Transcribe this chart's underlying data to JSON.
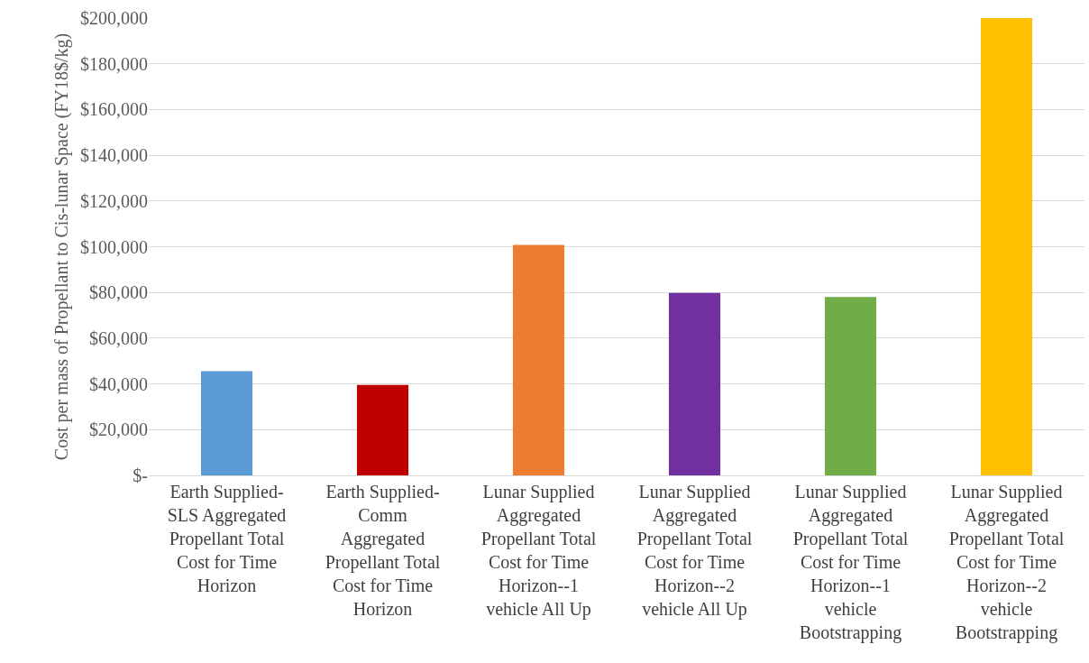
{
  "chart_data": {
    "type": "bar",
    "ylabel": "Cost per mass of Propellant to Cis-lunar Space (FY18$/kg)",
    "categories": [
      "Earth Supplied-\nSLS Aggregated\nPropellant Total\nCost for Time\nHorizon",
      "Earth Supplied-\nComm\nAggregated\nPropellant Total\nCost for Time\nHorizon",
      "Lunar Supplied\nAggregated\nPropellant Total\nCost for Time\nHorizon--1\nvehicle All Up",
      "Lunar Supplied\nAggregated\nPropellant Total\nCost for Time\nHorizon--2\nvehicle All Up",
      "Lunar Supplied\nAggregated\nPropellant Total\nCost for Time\nHorizon--1\nvehicle\nBootstrapping",
      "Lunar Supplied\nAggregated\nPropellant Total\nCost for Time\nHorizon--2\nvehicle\nBootstrapping"
    ],
    "values": [
      45600,
      39500,
      100800,
      79800,
      78000,
      200000
    ],
    "colors": [
      "#5b9bd5",
      "#c00000",
      "#ed7d31",
      "#7030a0",
      "#70ad47",
      "#ffc000"
    ],
    "ylim": [
      0,
      200000
    ],
    "yticks": [
      {
        "value": 0,
        "label": "$-"
      },
      {
        "value": 20000,
        "label": "$20,000"
      },
      {
        "value": 40000,
        "label": "$40,000"
      },
      {
        "value": 60000,
        "label": "$60,000"
      },
      {
        "value": 80000,
        "label": "$80,000"
      },
      {
        "value": 100000,
        "label": "$100,000"
      },
      {
        "value": 120000,
        "label": "$120,000"
      },
      {
        "value": 140000,
        "label": "$140,000"
      },
      {
        "value": 160000,
        "label": "$160,000"
      },
      {
        "value": 180000,
        "label": "$180,000"
      },
      {
        "value": 200000,
        "label": "$200,000"
      }
    ],
    "grid": "y"
  }
}
